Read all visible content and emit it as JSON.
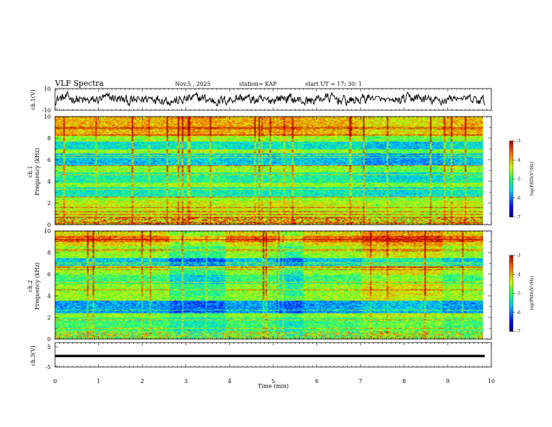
{
  "header": {
    "title": "VLF Spectra",
    "date": "Nov.5  , 2025",
    "station": "station= KAP",
    "start": "start  UT  =    17: 30: 1"
  },
  "chart_data": [
    {
      "type": "line",
      "name": "ch.1 waveform",
      "ylabel": "ch.1(V)",
      "ylim": [
        -10,
        10
      ],
      "yticks": [
        "10",
        "-10"
      ],
      "description_values": "noisy voltage trace around 0 V, amplitude roughly ±5 V, quieter near 9.5 min",
      "x_range": [
        0,
        9.85
      ]
    },
    {
      "type": "heatmap",
      "name": "ch.1 spectrogram",
      "ylabel_line1": "ch.1",
      "ylabel_line2": "Frequency  (kHz)",
      "ylim": [
        0,
        10
      ],
      "yticks": [
        "0",
        "2",
        "4",
        "6",
        "8",
        "10"
      ],
      "x_range": [
        0,
        9.85
      ],
      "colorbar": {
        "label": "log(PSD)(V²/Hz)",
        "range": [
          -7,
          -3
        ],
        "ticks": [
          "-3",
          "-4",
          "-5",
          "-6",
          "-7"
        ]
      }
    },
    {
      "type": "heatmap",
      "name": "ch.2 spectrogram",
      "ylabel_line1": "ch.2",
      "ylabel_line2": "Frequency  (kHz)",
      "ylim": [
        0,
        10
      ],
      "yticks": [
        "0",
        "2",
        "4",
        "6",
        "8",
        "10"
      ],
      "x_range": [
        0,
        9.85
      ],
      "colorbar": {
        "label": "log(PSD)(V²/Hz)",
        "range": [
          -7,
          -3
        ],
        "ticks": [
          "-3",
          "-4",
          "-5",
          "-6",
          "-7"
        ]
      }
    },
    {
      "type": "line",
      "name": "ch.3 waveform",
      "ylabel": "ch.3(V)",
      "ylim": [
        -5,
        5
      ],
      "yticks": [
        "5",
        "-5"
      ],
      "description_values": "dense band between about -1 V and 0 V",
      "band": [
        -1,
        0
      ],
      "x_range": [
        0,
        9.85
      ]
    }
  ],
  "xaxis": {
    "label": "Time  (min)",
    "xlim": [
      0,
      10
    ],
    "ticks": [
      "0",
      "1",
      "2",
      "3",
      "4",
      "5",
      "6",
      "7",
      "8",
      "9",
      "10"
    ]
  },
  "colors": {
    "axis": "#000000",
    "trace": "#000000"
  }
}
